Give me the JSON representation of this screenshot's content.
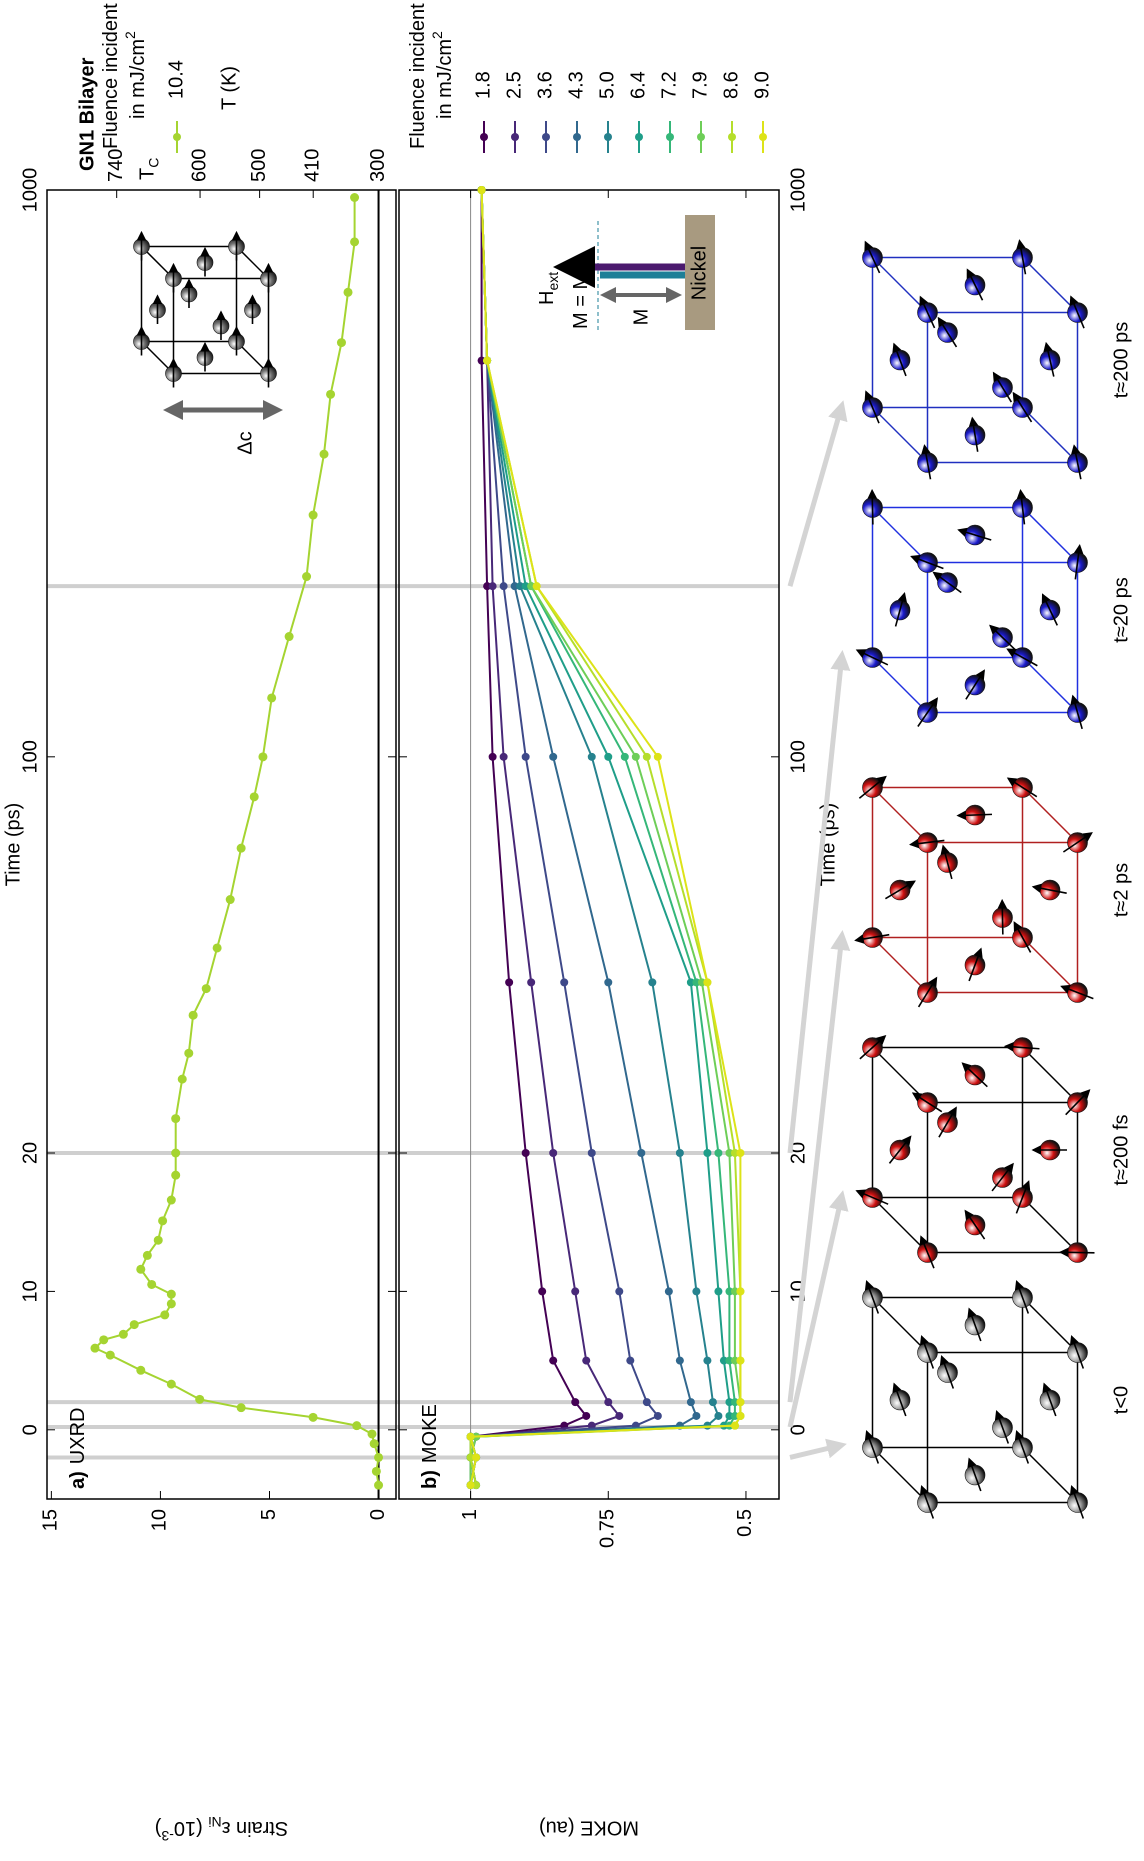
{
  "chart_data": [
    {
      "type": "line",
      "panel_letter": "a)",
      "title": "UXRD",
      "heading": "GN1 Bilayer",
      "x_label": "Time (ps)",
      "y_label": [
        {
          "text": "Strain ε"
        },
        {
          "text": "Ni",
          "shift": "sub"
        },
        {
          "text": " (10"
        },
        {
          "text": "-3",
          "shift": "super"
        },
        {
          "text": ")"
        }
      ],
      "y2_label": "T (K)",
      "y2_note": [
        {
          "text": "T"
        },
        {
          "text": "C",
          "shift": "sub"
        }
      ],
      "y2_note_color": "#a0303c",
      "legend_title": [
        [
          {
            "text": "Fluence incident"
          }
        ],
        [
          {
            "text": "in mJ/cm"
          },
          {
            "text": "2",
            "shift": "super"
          }
        ]
      ],
      "xscale": "linear-log",
      "xbreak": 20,
      "xlim": [
        -5,
        1000
      ],
      "xticks": [
        0,
        10,
        20,
        100,
        1000
      ],
      "ylim": [
        -0.8,
        15.2
      ],
      "yticks": [
        0,
        5,
        10,
        15
      ],
      "y2lim": [
        271,
        857
      ],
      "y2ticks": [
        300,
        410,
        500,
        600,
        740
      ],
      "reference_line": 0,
      "reference_color": "#000000",
      "time_markers": [
        -2,
        0.2,
        2,
        20,
        200
      ],
      "inset_label": "Δc",
      "x": [
        -4,
        -3,
        -2,
        -1,
        -0.3,
        0.3,
        0.9,
        1.6,
        2.2,
        3.3,
        4.3,
        5.4,
        5.9,
        6.5,
        6.9,
        7.6,
        8.3,
        9.1,
        9.8,
        10.5,
        11.6,
        12.6,
        13.7,
        15.1,
        16.6,
        18.4,
        20,
        23,
        27,
        30,
        35,
        39,
        46,
        56,
        69,
        85,
        100,
        127,
        163,
        208,
        267,
        342,
        436,
        538,
        660,
        810,
        970
      ],
      "series": [
        {
          "name": "10.4",
          "color": "#a5d431",
          "values": [
            0,
            0.1,
            0,
            0.2,
            0.3,
            1.0,
            3.0,
            6.3,
            8.2,
            9.5,
            10.9,
            12.3,
            13.0,
            12.6,
            11.7,
            11.2,
            9.8,
            9.5,
            9.5,
            10.4,
            10.9,
            10.6,
            10.1,
            9.9,
            9.5,
            9.3,
            9.3,
            9.3,
            9.0,
            8.7,
            8.5,
            7.9,
            7.4,
            6.8,
            6.3,
            5.7,
            5.3,
            4.9,
            4.1,
            3.3,
            3.0,
            2.5,
            2.2,
            1.7,
            1.4,
            1.1,
            1.1
          ]
        }
      ]
    },
    {
      "type": "line",
      "panel_letter": "b)",
      "title": "MOKE",
      "x_label": "Time (ps)",
      "y_label": "MOKE (au)",
      "legend_title": [
        [
          {
            "text": "Fluence incident"
          }
        ],
        [
          {
            "text": "in mJ/cm"
          },
          {
            "text": "2",
            "shift": "super"
          }
        ]
      ],
      "xscale": "linear-log",
      "xbreak": 20,
      "xlim": [
        -5,
        1000
      ],
      "xticks": [
        0,
        10,
        20,
        100,
        1000
      ],
      "ylim": [
        0.44,
        1.13
      ],
      "yticks": [
        0.5,
        0.75,
        1
      ],
      "reference_line": 1,
      "reference_color": "#888888",
      "inset_labels": {
        "field": [
          {
            "text": "H"
          },
          {
            "text": "ext",
            "shift": "sub"
          }
        ],
        "field_color": "#4b1a6e",
        "moment": [
          {
            "text": "M = M"
          },
          {
            "text": "z",
            "shift": "sub"
          }
        ],
        "moment_color": "#1e7f97",
        "m": "M",
        "material": "Nickel"
      },
      "x": [
        -4,
        -2,
        -0.5,
        0.3,
        1,
        2,
        5,
        10,
        20,
        40,
        100,
        200,
        500,
        1000
      ],
      "series": [
        {
          "name": "1.8",
          "color": "#440154",
          "values": [
            1,
            0.99,
            1,
            0.83,
            0.79,
            0.81,
            0.85,
            0.87,
            0.9,
            0.93,
            0.96,
            0.97,
            0.98,
            0.98
          ]
        },
        {
          "name": "2.5",
          "color": "#482878",
          "values": [
            1,
            1,
            0.99,
            0.78,
            0.73,
            0.75,
            0.79,
            0.81,
            0.85,
            0.89,
            0.94,
            0.96,
            0.97,
            0.98
          ]
        },
        {
          "name": "3.6",
          "color": "#3e4989",
          "values": [
            0.99,
            1,
            1,
            0.7,
            0.66,
            0.68,
            0.71,
            0.73,
            0.78,
            0.83,
            0.9,
            0.94,
            0.97,
            0.98
          ]
        },
        {
          "name": "4.3",
          "color": "#31688e",
          "values": [
            1,
            0.99,
            1,
            0.62,
            0.59,
            0.6,
            0.62,
            0.64,
            0.69,
            0.75,
            0.85,
            0.92,
            0.97,
            0.98
          ]
        },
        {
          "name": "5.0",
          "color": "#26828e",
          "values": [
            1,
            1,
            0.99,
            0.57,
            0.55,
            0.56,
            0.57,
            0.59,
            0.62,
            0.67,
            0.78,
            0.91,
            0.97,
            0.98
          ]
        },
        {
          "name": "6.4",
          "color": "#1f9e89",
          "values": [
            0.99,
            1,
            1,
            0.54,
            0.53,
            0.53,
            0.54,
            0.55,
            0.57,
            0.6,
            0.75,
            0.9,
            0.97,
            0.98
          ]
        },
        {
          "name": "7.2",
          "color": "#35b779",
          "values": [
            1,
            0.99,
            1,
            0.53,
            0.52,
            0.52,
            0.53,
            0.53,
            0.55,
            0.59,
            0.72,
            0.89,
            0.97,
            0.98
          ]
        },
        {
          "name": "7.9",
          "color": "#6ece58",
          "values": [
            1,
            1,
            0.99,
            0.52,
            0.51,
            0.51,
            0.52,
            0.52,
            0.53,
            0.58,
            0.7,
            0.89,
            0.97,
            0.98
          ]
        },
        {
          "name": "8.6",
          "color": "#b5de2b",
          "values": [
            0.99,
            1,
            1,
            0.52,
            0.51,
            0.51,
            0.51,
            0.51,
            0.52,
            0.57,
            0.68,
            0.88,
            0.97,
            0.98
          ]
        },
        {
          "name": "9.0",
          "color": "#dde318",
          "values": [
            1,
            0.99,
            1,
            0.52,
            0.51,
            0.51,
            0.51,
            0.51,
            0.51,
            0.57,
            0.66,
            0.88,
            0.97,
            0.98
          ]
        }
      ]
    }
  ],
  "snapshots": [
    {
      "label": "t<0",
      "color": "#9a9a9a",
      "edge_color": "#000000"
    },
    {
      "label": "t≈200 fs",
      "color": "#d01010",
      "edge_color": "#000000"
    },
    {
      "label": "t≈2 ps",
      "color": "#d01010",
      "edge_color": "#b02020"
    },
    {
      "label": "t≈20 ps",
      "color": "#1a1acc",
      "edge_color": "#2030e0"
    },
    {
      "label": "t≈200 ps",
      "color": "#1a1acc",
      "edge_color": "#2030c0"
    }
  ]
}
